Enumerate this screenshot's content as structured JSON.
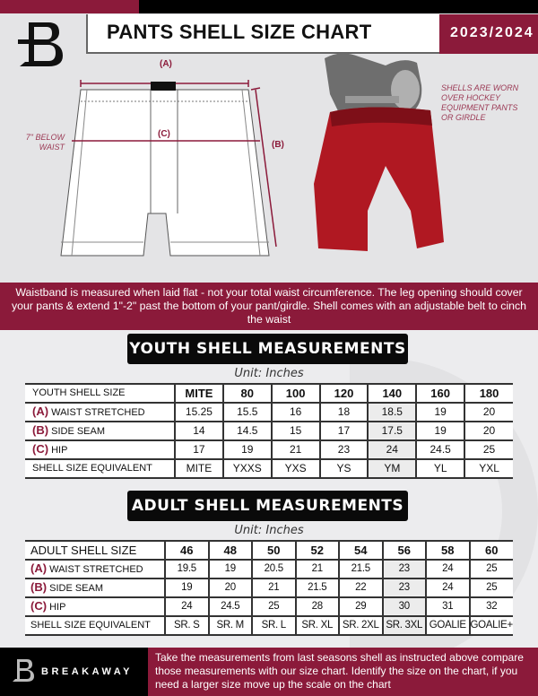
{
  "header": {
    "title": "PANTS SHELL SIZE CHART",
    "season": "2023/2024"
  },
  "diagram": {
    "label_a": "(A)",
    "label_b": "(B)",
    "label_c": "(C)",
    "hip_note": "7\" BELOW WAIST",
    "worn_note": "SHELLS ARE WORN OVER HOCKEY EQUIPMENT PANTS OR GIRDLE"
  },
  "info_band": "Waistband is measured when laid flat - not your total waist circumference. The leg opening should cover your pants & extend 1\"-2\" past the bottom of your pant/girdle. Shell comes with an adjustable belt to cinch the waist",
  "youth": {
    "title": "YOUTH SHELL MEASUREMENTS",
    "unit": "Unit: Inches",
    "rows": [
      {
        "letter": "",
        "label": "YOUTH SHELL SIZE",
        "values": [
          "MITE",
          "80",
          "100",
          "120",
          "140",
          "160",
          "180"
        ]
      },
      {
        "letter": "(A)",
        "label": "WAIST STRETCHED",
        "values": [
          "15.25",
          "15.5",
          "16",
          "18",
          "18.5",
          "19",
          "20"
        ]
      },
      {
        "letter": "(B)",
        "label": "SIDE SEAM",
        "values": [
          "14",
          "14.5",
          "15",
          "17",
          "17.5",
          "19",
          "20"
        ]
      },
      {
        "letter": "(C)",
        "label": "HIP",
        "values": [
          "17",
          "19",
          "21",
          "23",
          "24",
          "24.5",
          "25"
        ]
      },
      {
        "letter": "",
        "label": "SHELL SIZE EQUIVALENT",
        "values": [
          "MITE",
          "YXXS",
          "YXS",
          "YS",
          "YM",
          "YL",
          "YXL"
        ]
      }
    ]
  },
  "adult": {
    "title": "ADULT SHELL MEASUREMENTS",
    "unit": "Unit: Inches",
    "rows": [
      {
        "letter": "",
        "label": "ADULT SHELL SIZE",
        "values": [
          "46",
          "48",
          "50",
          "52",
          "54",
          "56",
          "58",
          "60"
        ]
      },
      {
        "letter": "(A)",
        "label": "WAIST STRETCHED",
        "values": [
          "19.5",
          "19",
          "20.5",
          "21",
          "21.5",
          "23",
          "24",
          "25"
        ]
      },
      {
        "letter": "(B)",
        "label": "SIDE SEAM",
        "values": [
          "19",
          "20",
          "21",
          "21.5",
          "22",
          "23",
          "24",
          "25"
        ]
      },
      {
        "letter": "(C)",
        "label": "HIP",
        "values": [
          "24",
          "24.5",
          "25",
          "28",
          "29",
          "30",
          "31",
          "32"
        ]
      },
      {
        "letter": "",
        "label": "SHELL SIZE EQUIVALENT",
        "values": [
          "SR. S",
          "SR. M",
          "SR. L",
          "SR. XL",
          "SR. 2XL",
          "SR. 3XL",
          "GOALIE",
          "GOALIE+"
        ]
      }
    ]
  },
  "footer": {
    "brand": "BREAKAWAY",
    "instructions": "Take the measurements from last seasons shell as instructed above compare those measurements  with our size chart. Identify the size on the chart, if you need a larger size move up the scale on the chart"
  },
  "colors": {
    "maroon": "#8b1a3a",
    "black": "#000000",
    "gray": "#e4e4e6"
  }
}
